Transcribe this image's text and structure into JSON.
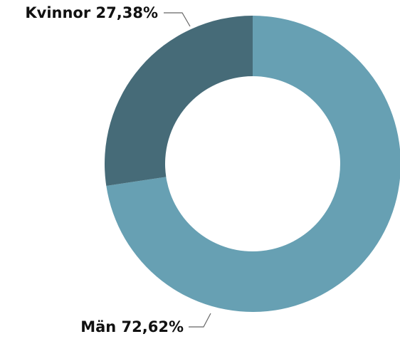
{
  "chart_data": {
    "type": "donut",
    "categories": [
      "Män",
      "Kvinnor"
    ],
    "values": [
      72.62,
      27.38
    ],
    "value_labels": [
      "72,62%",
      "27,38%"
    ],
    "colors": [
      "#67a0b3",
      "#466b78"
    ]
  }
}
